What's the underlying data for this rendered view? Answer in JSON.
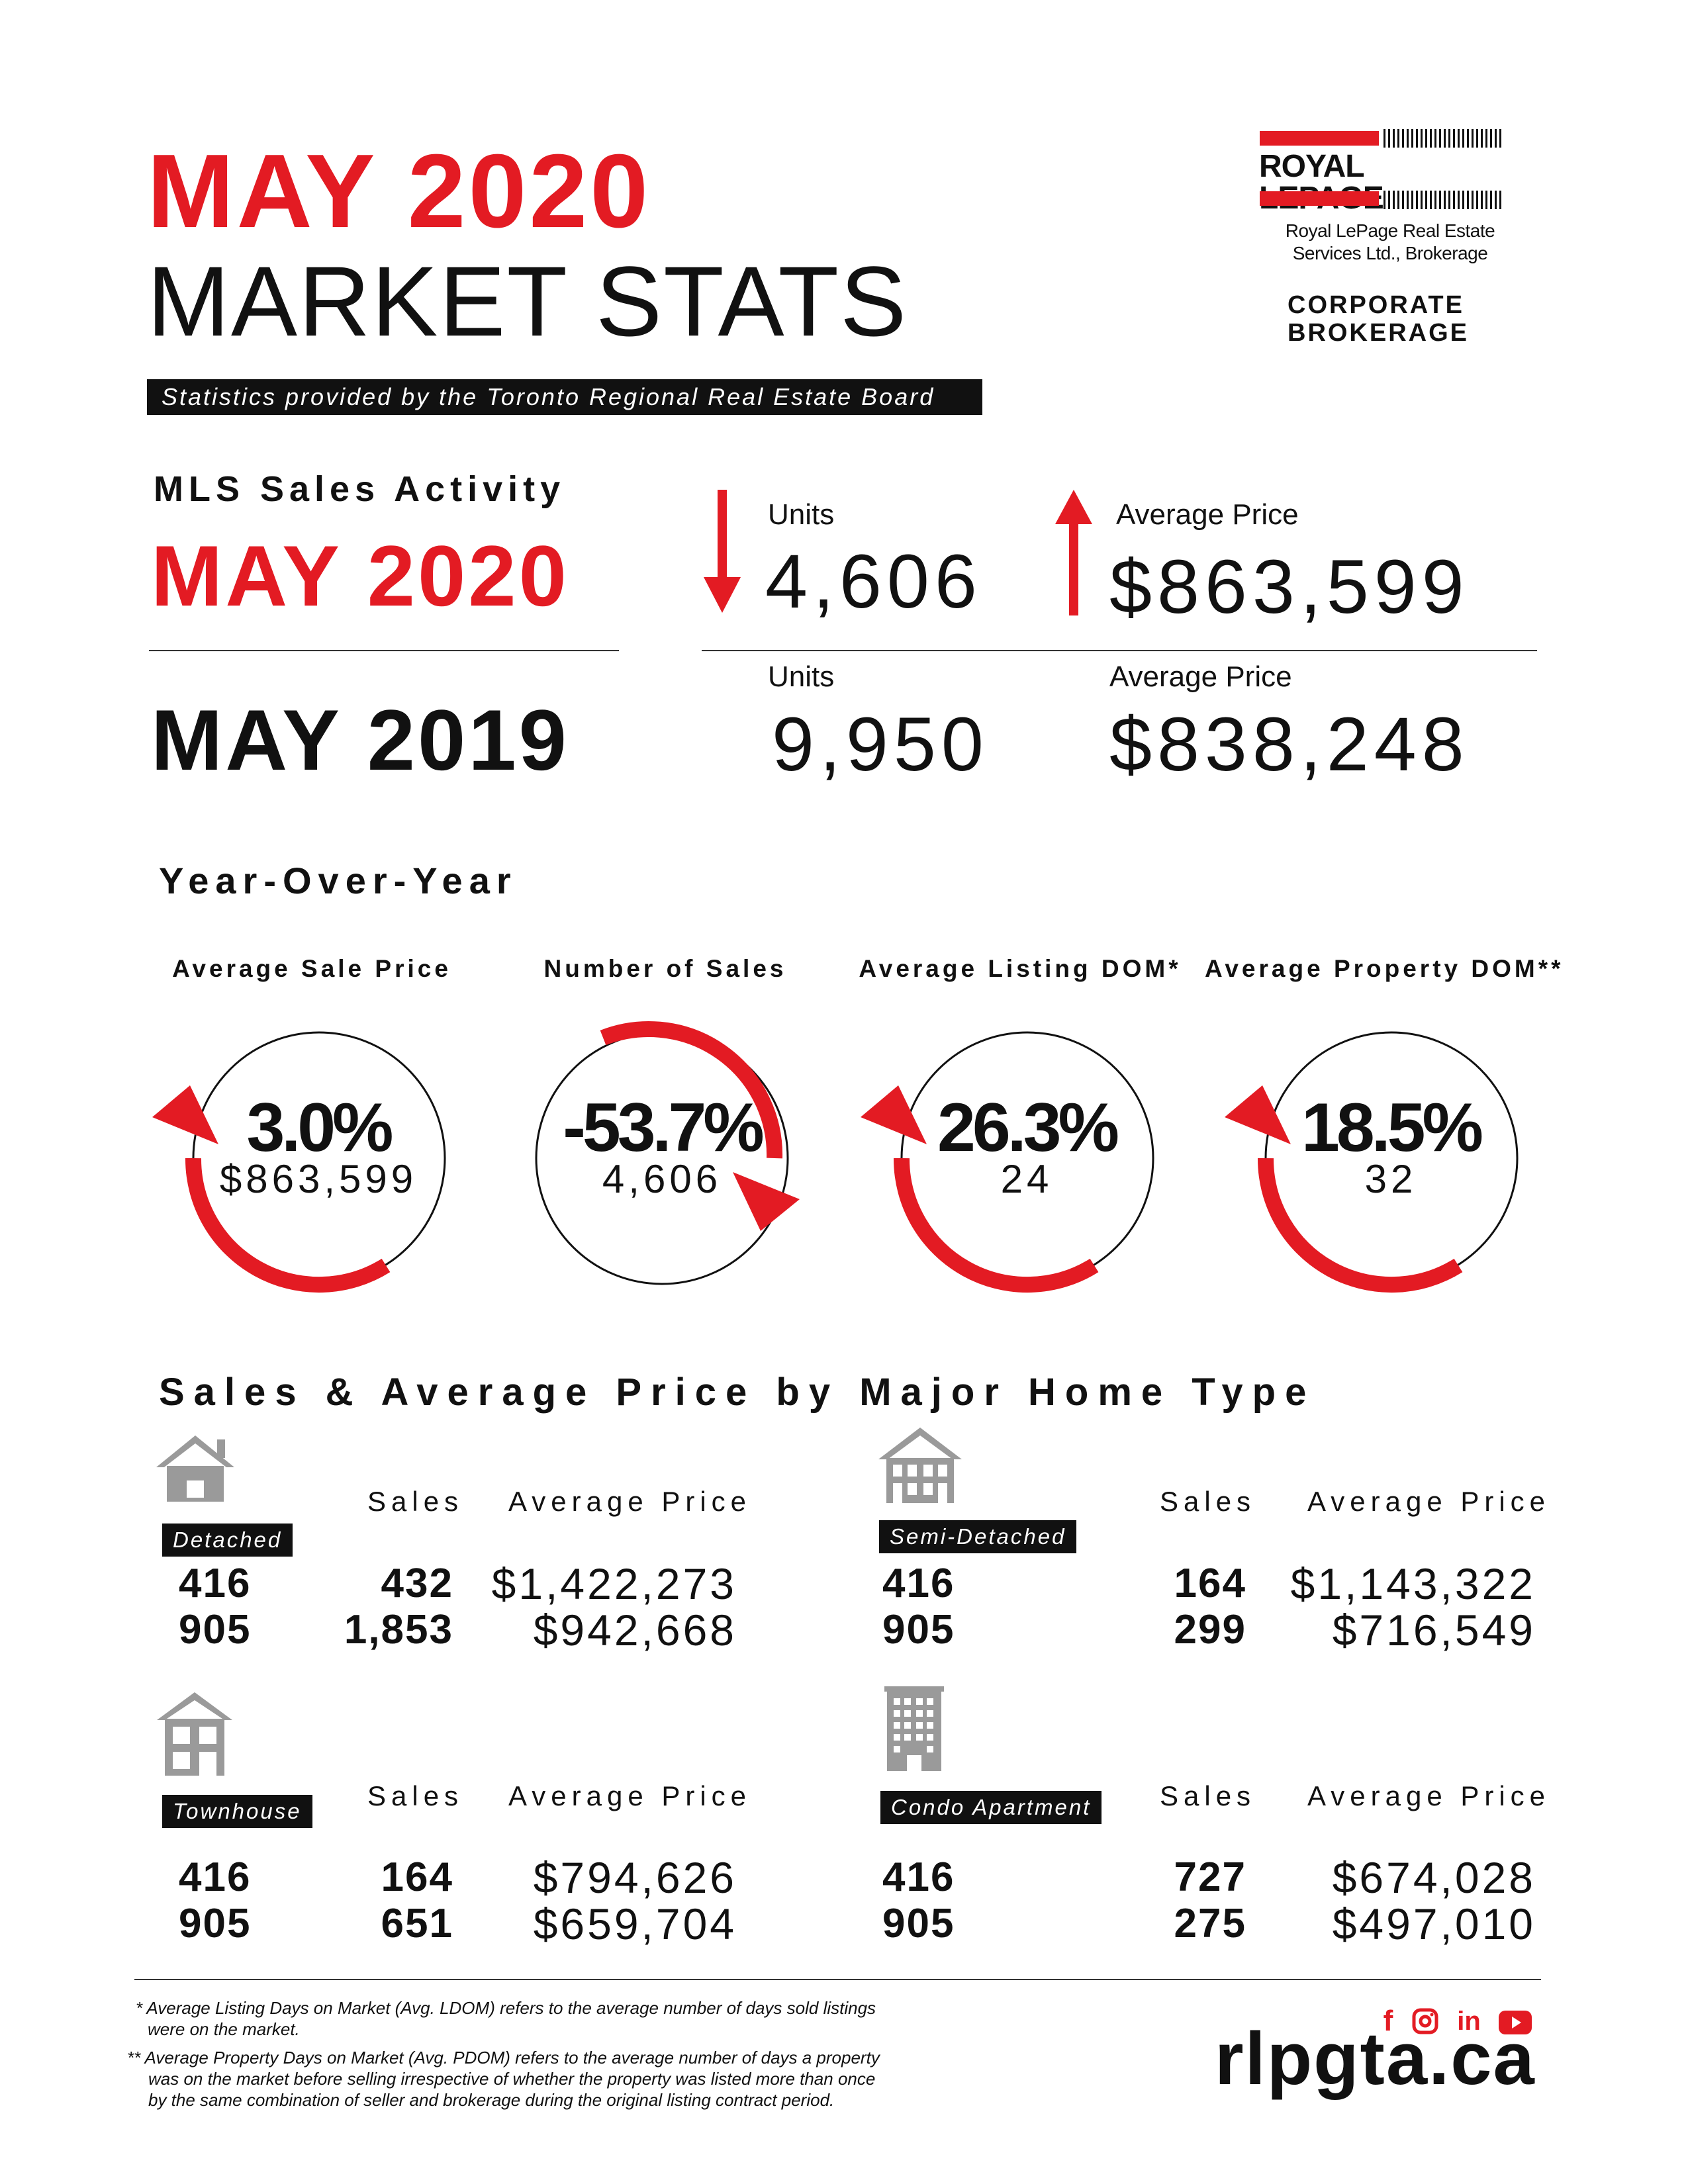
{
  "header": {
    "month": "MAY 2020",
    "subtitle": "MARKET STATS",
    "provided_by": "Statistics provided by the Toronto Regional Real Estate Board"
  },
  "logo": {
    "wordmark": "ROYAL LEPAGE",
    "company_line1": "Royal LePage Real Estate",
    "company_line2": "Services Ltd., Brokerage",
    "corporate_line1": "CORPORATE",
    "corporate_line2": "BROKERAGE"
  },
  "mls": {
    "title": "MLS Sales Activity",
    "current_label": "MAY 2020",
    "previous_label": "MAY 2019",
    "current": {
      "units_label": "Units",
      "units": "4,606",
      "units_trend": "down",
      "price_label": "Average Price",
      "price": "$863,599",
      "price_trend": "up"
    },
    "previous": {
      "units_label": "Units",
      "units": "9,950",
      "price_label": "Average Price",
      "price": "$838,248"
    }
  },
  "yoy": {
    "title": "Year-Over-Year",
    "gauges": [
      {
        "label": "Average Sale Price",
        "pct": "3.0%",
        "value": "$863,599",
        "direction": "up"
      },
      {
        "label": "Number of Sales",
        "pct": "-53.7%",
        "value": "4,606",
        "direction": "down"
      },
      {
        "label": "Average Listing DOM*",
        "pct": "26.3%",
        "value": "24",
        "direction": "up"
      },
      {
        "label": "Average Property DOM**",
        "pct": "18.5%",
        "value": "32",
        "direction": "up"
      }
    ]
  },
  "home_types": {
    "title": "Sales & Average Price by Major Home Type",
    "sales_header": "Sales",
    "price_header": "Average Price",
    "types": [
      {
        "name": "Detached",
        "icon": "detached-house-icon",
        "rows": [
          {
            "area": "416",
            "sales": "432",
            "price": "$1,422,273"
          },
          {
            "area": "905",
            "sales": "1,853",
            "price": "$942,668"
          }
        ]
      },
      {
        "name": "Semi-Detached",
        "icon": "semi-detached-house-icon",
        "rows": [
          {
            "area": "416",
            "sales": "164",
            "price": "$1,143,322"
          },
          {
            "area": "905",
            "sales": "299",
            "price": "$716,549"
          }
        ]
      },
      {
        "name": "Townhouse",
        "icon": "townhouse-icon",
        "rows": [
          {
            "area": "416",
            "sales": "164",
            "price": "$794,626"
          },
          {
            "area": "905",
            "sales": "651",
            "price": "$659,704"
          }
        ]
      },
      {
        "name": "Condo Apartment",
        "icon": "condo-building-icon",
        "rows": [
          {
            "area": "416",
            "sales": "727",
            "price": "$674,028"
          },
          {
            "area": "905",
            "sales": "275",
            "price": "$497,010"
          }
        ]
      }
    ]
  },
  "footer": {
    "note1_line1": "* Average Listing Days on Market (Avg. LDOM) refers to the average number of days sold listings",
    "note1_line2": "were on the market.",
    "note2_line1": "** Average Property Days on Market (Avg. PDOM) refers to the average number of days a property",
    "note2_line2": "was on the market before selling irrespective of whether the property was listed more than once",
    "note2_line3": "by the same combination of seller and brokerage during the original listing contract period.",
    "website": "rlpgta.ca",
    "social_icons": [
      "facebook-icon",
      "instagram-icon",
      "linkedin-icon",
      "youtube-icon"
    ],
    "accent_color": "#e31b23"
  }
}
